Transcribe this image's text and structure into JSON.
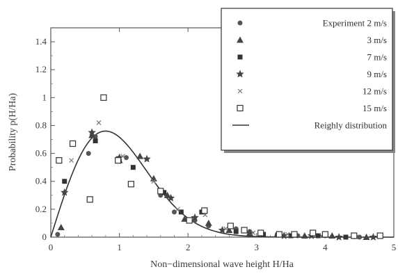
{
  "chart_data": {
    "type": "scatter",
    "xlabel": "Non−dimensional wave height H/Ha",
    "ylabel": "Probability p(H/Ha)",
    "xlim": [
      0,
      5
    ],
    "ylim": [
      0,
      1.5
    ],
    "x_ticks": [
      0,
      1,
      2,
      3,
      4,
      5
    ],
    "x_tick_labels": [
      "0",
      "1",
      "2",
      "3",
      "4",
      "5"
    ],
    "y_ticks": [
      0,
      0.2,
      0.4,
      0.6,
      0.8,
      1.0,
      1.2,
      1.4
    ],
    "y_tick_labels": [
      "0",
      "0.2",
      "0.4",
      "0.6",
      "0.8",
      "1",
      "1.2",
      "1.4"
    ],
    "grid": false,
    "legend_position": "top-right",
    "series": [
      {
        "name": "Experiment 2 m/s",
        "marker": "circle",
        "color": "#555555",
        "x": [
          0.1,
          0.55,
          0.65,
          1.0,
          1.1,
          1.6,
          1.8,
          2.1,
          2.3,
          2.7,
          2.9,
          3.3,
          3.6,
          4.0,
          4.5
        ],
        "y": [
          0.02,
          0.6,
          0.72,
          0.55,
          0.57,
          0.3,
          0.18,
          0.12,
          0.08,
          0.06,
          0.04,
          0.02,
          0.01,
          0.01,
          0.0
        ]
      },
      {
        "name": "3 m/s",
        "marker": "triangle",
        "color": "#444444",
        "x": [
          0.15,
          0.6,
          1.0,
          1.3,
          1.5,
          1.7,
          1.95,
          2.3,
          2.6,
          2.9,
          3.3,
          3.7,
          4.1,
          4.6
        ],
        "y": [
          0.07,
          0.73,
          0.55,
          0.58,
          0.42,
          0.3,
          0.13,
          0.1,
          0.05,
          0.03,
          0.02,
          0.01,
          0.01,
          0.0
        ]
      },
      {
        "name": "7 m/s",
        "marker": "square-filled",
        "color": "#333333",
        "x": [
          0.2,
          0.65,
          1.2,
          1.65,
          1.9,
          2.2,
          2.7,
          3.1,
          3.5,
          3.9,
          4.3
        ],
        "y": [
          0.4,
          0.69,
          0.5,
          0.32,
          0.18,
          0.18,
          0.04,
          0.02,
          0.01,
          0.01,
          0.0
        ]
      },
      {
        "name": "9 m/s",
        "marker": "star",
        "color": "#444444",
        "x": [
          0.2,
          0.6,
          1.0,
          1.4,
          1.75,
          2.1,
          2.5,
          2.9,
          3.4,
          3.8,
          4.2,
          4.7
        ],
        "y": [
          0.32,
          0.75,
          0.57,
          0.56,
          0.28,
          0.14,
          0.05,
          0.03,
          0.01,
          0.01,
          0.0,
          0.0
        ]
      },
      {
        "name": "12 m/s",
        "marker": "x",
        "color": "#777777",
        "x": [
          0.3,
          0.7,
          1.05,
          1.5,
          1.85,
          2.25,
          2.55,
          2.95,
          3.45,
          3.95,
          4.45
        ],
        "y": [
          0.55,
          0.82,
          0.58,
          0.4,
          0.2,
          0.16,
          0.06,
          0.03,
          0.02,
          0.01,
          0.0
        ]
      },
      {
        "name": "15 m/s",
        "marker": "square-open",
        "color": "#333333",
        "x": [
          0.12,
          0.32,
          0.57,
          0.77,
          0.98,
          1.17,
          1.6,
          2.02,
          2.24,
          2.62,
          2.82,
          3.06,
          3.33,
          3.55,
          3.82,
          4.0,
          4.42,
          4.8
        ],
        "y": [
          0.55,
          0.67,
          0.27,
          1.0,
          0.55,
          0.38,
          0.33,
          0.12,
          0.19,
          0.08,
          0.05,
          0.03,
          0.02,
          0.02,
          0.03,
          0.02,
          0.01,
          0.01
        ]
      }
    ],
    "curve": {
      "name": "Reighly distribution",
      "type": "line",
      "color": "#333333",
      "formula": "p(x) = (pi/2) x exp(-(pi/4) x^2)",
      "x_range": [
        0,
        5
      ]
    }
  }
}
